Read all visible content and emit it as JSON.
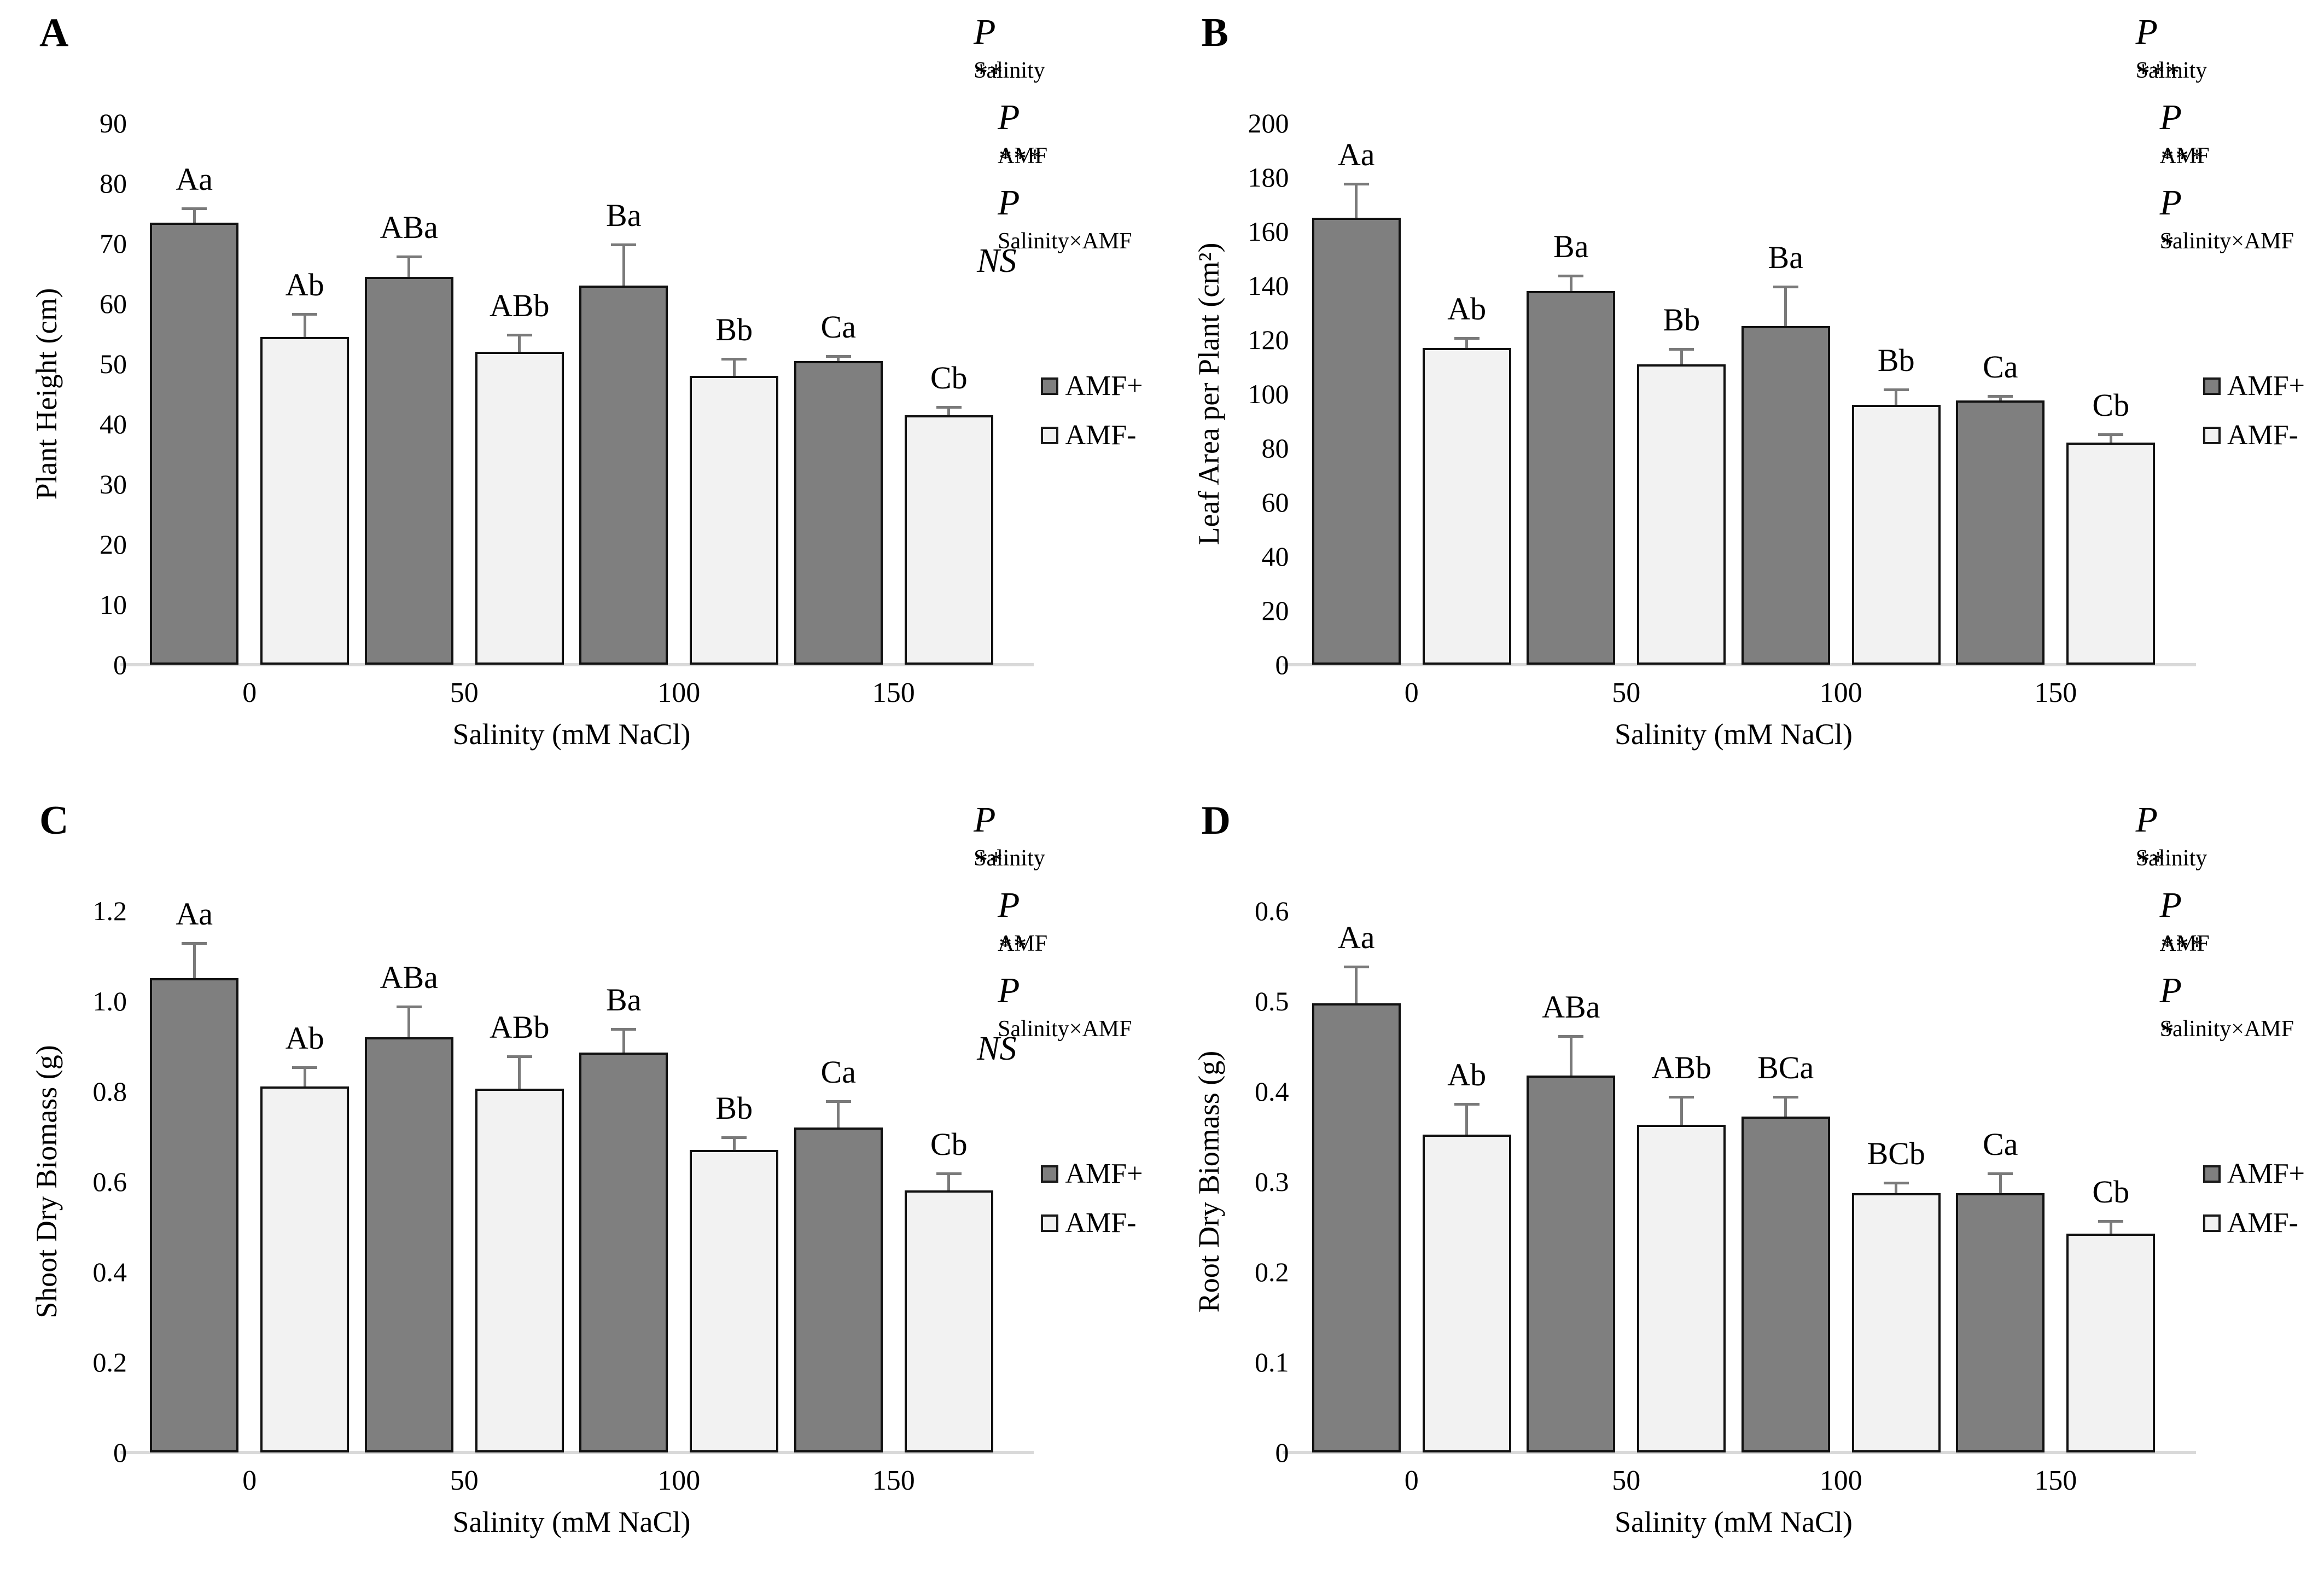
{
  "figure": {
    "xlabel": "Salinity (mM NaCl)",
    "categories": [
      "0",
      "50",
      "100",
      "150"
    ],
    "colors": {
      "amf_plus_fill": "#7f7f7f",
      "amf_minus_fill": "#f2f2f2",
      "bar_border": "#111111",
      "error_bar": "#7a7a7a",
      "baseline": "#d9d9d9",
      "text": "#000000",
      "background": "#ffffff"
    },
    "legend": {
      "items": [
        {
          "label": "AMF+",
          "swatch": "amf_plus_fill"
        },
        {
          "label": "AMF-",
          "swatch": "amf_minus_fill"
        }
      ]
    }
  },
  "chart_data": [
    {
      "type": "bar",
      "panel_label": "A",
      "title_text": "P_Salinity** P_AMF*** P_Salinity×AMF NS",
      "title_terms": [
        {
          "sub": "Salinity",
          "sup": "**"
        },
        {
          "sub": "AMF",
          "sup": "***"
        },
        {
          "sub": "Salinity×AMF",
          "sup": ""
        }
      ],
      "title_suffix": "NS",
      "ylabel": "Plant Height (cm)",
      "xlabel": "Salinity (mM NaCl)",
      "ylim": [
        0,
        90
      ],
      "yticks": [
        "0",
        "10",
        "20",
        "30",
        "40",
        "50",
        "60",
        "70",
        "80",
        "90"
      ],
      "categories": [
        "0",
        "50",
        "100",
        "150"
      ],
      "series": [
        {
          "name": "AMF+",
          "values": [
            73.5,
            64.5,
            63,
            50.5
          ],
          "errors": [
            2.5,
            3.5,
            7,
            1
          ],
          "letters": [
            "Aa",
            "ABa",
            "Ba",
            "Ca"
          ]
        },
        {
          "name": "AMF-",
          "values": [
            54.5,
            52,
            48,
            41.5
          ],
          "errors": [
            4,
            3,
            3,
            1.5
          ],
          "letters": [
            "Ab",
            "ABb",
            "Bb",
            "Cb"
          ]
        }
      ]
    },
    {
      "type": "bar",
      "panel_label": "B",
      "title_text": "P_Salinity*** P_AMF*** P_Salinity×AMF*",
      "title_terms": [
        {
          "sub": "Salinity",
          "sup": "***"
        },
        {
          "sub": "AMF",
          "sup": "***"
        },
        {
          "sub": "Salinity×AMF",
          "sup": "*"
        }
      ],
      "title_suffix": "",
      "ylabel": "Leaf Area per Plant (cm²)",
      "xlabel": "Salinity (mM NaCl)",
      "ylim": [
        0,
        200
      ],
      "yticks": [
        "0",
        "20",
        "40",
        "60",
        "80",
        "100",
        "120",
        "140",
        "160",
        "180",
        "200"
      ],
      "categories": [
        "0",
        "50",
        "100",
        "150"
      ],
      "series": [
        {
          "name": "AMF+",
          "values": [
            165,
            138,
            125,
            97.5
          ],
          "errors": [
            13,
            6,
            15,
            2
          ],
          "letters": [
            "Aa",
            "Ba",
            "Ba",
            "Ca"
          ]
        },
        {
          "name": "AMF-",
          "values": [
            117,
            111,
            96,
            82
          ],
          "errors": [
            4,
            6,
            6,
            3.5
          ],
          "letters": [
            "Ab",
            "Bb",
            "Bb",
            "Cb"
          ]
        }
      ]
    },
    {
      "type": "bar",
      "panel_label": "C",
      "title_text": "P_Salinity** P_AMF** P_Salinity×AMF NS",
      "title_terms": [
        {
          "sub": "Salinity",
          "sup": "**"
        },
        {
          "sub": "AMF",
          "sup": "**"
        },
        {
          "sub": "Salinity×AMF",
          "sup": ""
        }
      ],
      "title_suffix": "NS",
      "ylabel": "Shoot Dry Biomass (g)",
      "xlabel": "Salinity (mM NaCl)",
      "ylim": [
        0,
        1.2
      ],
      "yticks": [
        "0",
        "0.2",
        "0.4",
        "0.6",
        "0.8",
        "1.0",
        "1.2"
      ],
      "categories": [
        "0",
        "50",
        "100",
        "150"
      ],
      "series": [
        {
          "name": "AMF+",
          "values": [
            1.05,
            0.92,
            0.885,
            0.72
          ],
          "errors": [
            0.08,
            0.07,
            0.055,
            0.06
          ],
          "letters": [
            "Aa",
            "ABa",
            "Ba",
            "Ca"
          ]
        },
        {
          "name": "AMF-",
          "values": [
            0.81,
            0.805,
            0.67,
            0.58
          ],
          "errors": [
            0.045,
            0.075,
            0.03,
            0.04
          ],
          "letters": [
            "Ab",
            "ABb",
            "Bb",
            "Cb"
          ]
        }
      ]
    },
    {
      "type": "bar",
      "panel_label": "D",
      "title_text": "P_Salinity** P_AMF*** P_Salinity×AMF*",
      "title_terms": [
        {
          "sub": "Salinity",
          "sup": "**"
        },
        {
          "sub": "AMF",
          "sup": "***"
        },
        {
          "sub": "Salinity×AMF",
          "sup": "*"
        }
      ],
      "title_suffix": "",
      "ylabel": "Root Dry Biomass (g)",
      "xlabel": "Salinity (mM NaCl)",
      "ylim": [
        0,
        0.6
      ],
      "yticks": [
        "0",
        "0.1",
        "0.2",
        "0.3",
        "0.4",
        "0.5",
        "0.6"
      ],
      "categories": [
        "0",
        "50",
        "100",
        "150"
      ],
      "series": [
        {
          "name": "AMF+",
          "values": [
            0.497,
            0.417,
            0.372,
            0.287
          ],
          "errors": [
            0.042,
            0.045,
            0.023,
            0.023
          ],
          "letters": [
            "Aa",
            "ABa",
            "BCa",
            "Ca"
          ]
        },
        {
          "name": "AMF-",
          "values": [
            0.352,
            0.363,
            0.287,
            0.242
          ],
          "errors": [
            0.035,
            0.032,
            0.013,
            0.015
          ],
          "letters": [
            "Ab",
            "ABb",
            "BCb",
            "Cb"
          ]
        }
      ]
    }
  ]
}
